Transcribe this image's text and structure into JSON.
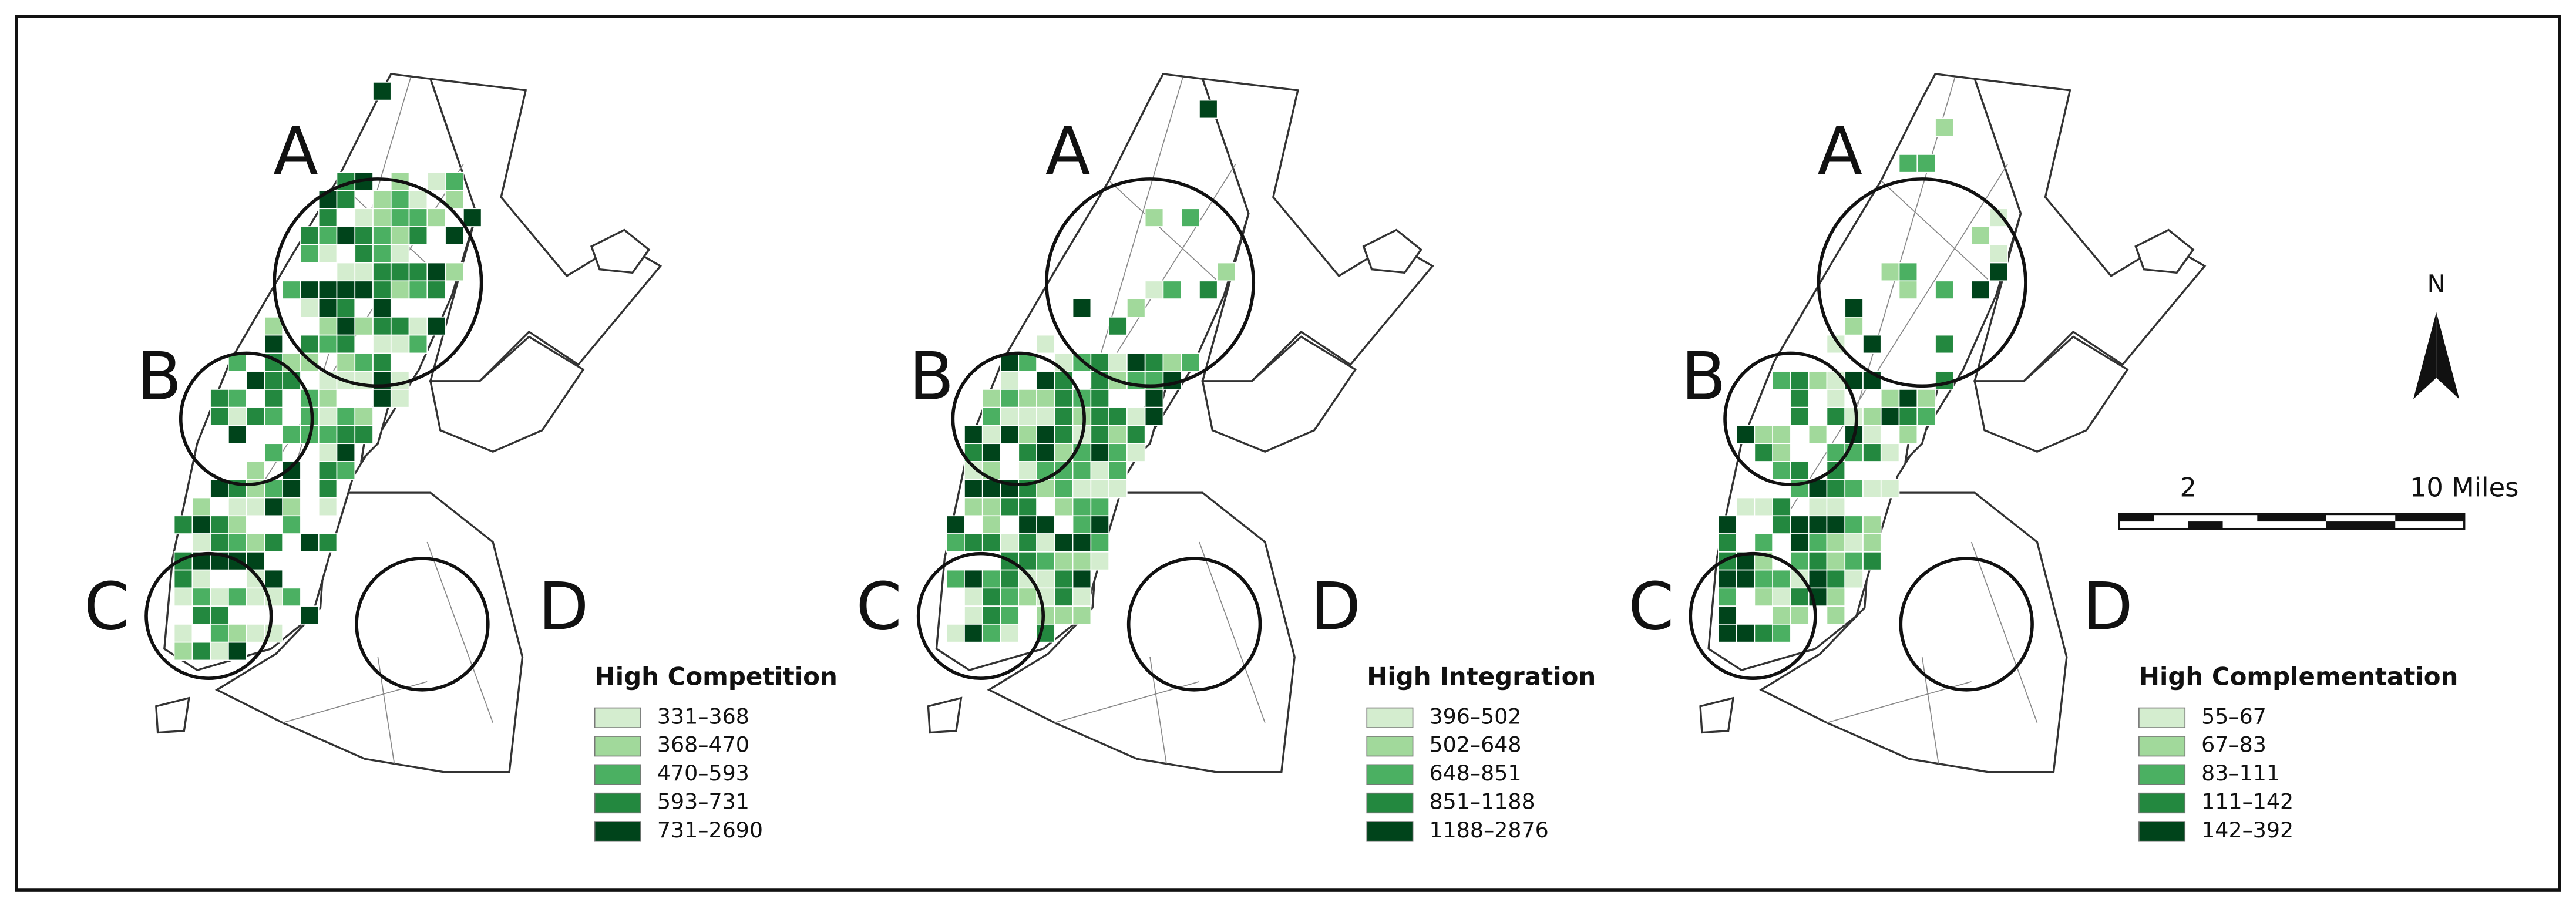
{
  "panels": [
    {
      "circles": [
        "A",
        "B",
        "C",
        "D"
      ],
      "legend_title": "High Competition",
      "classes": [
        "331–368",
        "368–470",
        "470–593",
        "593–731",
        "731–2690"
      ]
    },
    {
      "circles": [
        "A",
        "B",
        "C",
        "D"
      ],
      "legend_title": "High Integration",
      "classes": [
        "396–502",
        "502–648",
        "648–851",
        "851–1188",
        "1188–2876"
      ]
    },
    {
      "circles": [
        "A",
        "B",
        "C",
        "D"
      ],
      "legend_title": "High Complementation",
      "classes": [
        "55–67",
        "67–83",
        "83–111",
        "111–142",
        "142–392"
      ]
    }
  ],
  "class_colors": [
    "#d4edcf",
    "#a1d99b",
    "#4bb062",
    "#23883f",
    "#00441b"
  ],
  "north_label": "N",
  "scale_bar": {
    "labels": [
      "2",
      "10 Miles"
    ]
  }
}
